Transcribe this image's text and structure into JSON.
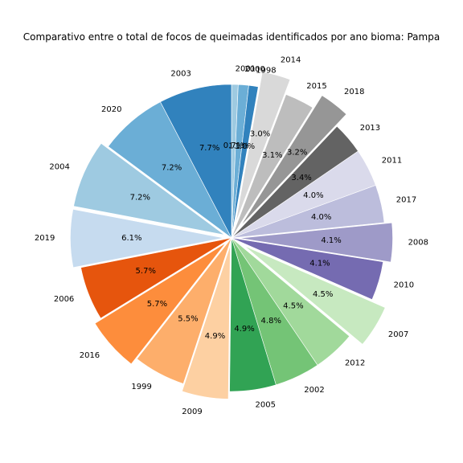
{
  "chart_data": {
    "type": "pie",
    "title": "Comparativo entre o total de focos de queimadas identificados por ano bioma: Pampa",
    "start_angle_deg": 90,
    "direction": "clockwise",
    "pct_format": "{:.1f}%",
    "slices": [
      {
        "label": "2001",
        "value": 0.7,
        "pct": "0.7%",
        "color": "#9ecae1",
        "explode": 0
      },
      {
        "label": "2000",
        "value": 1.1,
        "pct": "1.1%",
        "color": "#6baed6",
        "explode": 0
      },
      {
        "label": "1998",
        "value": 1.0,
        "pct": "1.0%",
        "color": "#3182bd",
        "explode": 0
      },
      {
        "label": "2014",
        "value": 3.0,
        "pct": "3.0%",
        "color": "#d9d9d9",
        "explode": 0.1
      },
      {
        "label": "2015",
        "value": 3.1,
        "pct": "3.1%",
        "color": "#bdbdbd",
        "explode": 0
      },
      {
        "label": "2018",
        "value": 3.2,
        "pct": "3.2%",
        "color": "#969696",
        "explode": 0.1
      },
      {
        "label": "2013",
        "value": 3.4,
        "pct": "3.4%",
        "color": "#636363",
        "explode": 0
      },
      {
        "label": "2011",
        "value": 4.0,
        "pct": "4.0%",
        "color": "#dadaeb",
        "explode": 0
      },
      {
        "label": "2017",
        "value": 4.0,
        "pct": "4.0%",
        "color": "#bcbddc",
        "explode": 0
      },
      {
        "label": "2008",
        "value": 4.1,
        "pct": "4.1%",
        "color": "#9e9ac8",
        "explode": 0.05
      },
      {
        "label": "2010",
        "value": 4.1,
        "pct": "4.1%",
        "color": "#756bb1",
        "explode": 0
      },
      {
        "label": "2007",
        "value": 4.5,
        "pct": "4.5%",
        "color": "#c7e9c0",
        "explode": 0.1
      },
      {
        "label": "2012",
        "value": 4.5,
        "pct": "4.5%",
        "color": "#a1d99b",
        "explode": 0
      },
      {
        "label": "2002",
        "value": 4.8,
        "pct": "4.8%",
        "color": "#74c476",
        "explode": 0
      },
      {
        "label": "2005",
        "value": 4.9,
        "pct": "4.9%",
        "color": "#31a354",
        "explode": 0
      },
      {
        "label": "2009",
        "value": 4.9,
        "pct": "4.9%",
        "color": "#fdd0a2",
        "explode": 0.05
      },
      {
        "label": "1999",
        "value": 5.5,
        "pct": "5.5%",
        "color": "#fdae6b",
        "explode": 0
      },
      {
        "label": "2016",
        "value": 5.7,
        "pct": "5.7%",
        "color": "#fd8d3c",
        "explode": 0.05
      },
      {
        "label": "2006",
        "value": 5.7,
        "pct": "5.7%",
        "color": "#e6550d",
        "explode": 0
      },
      {
        "label": "2019",
        "value": 6.1,
        "pct": "6.1%",
        "color": "#c6dbef",
        "explode": 0.05
      },
      {
        "label": "2004",
        "value": 7.2,
        "pct": "7.2%",
        "color": "#9ecae1",
        "explode": 0.05
      },
      {
        "label": "2020",
        "value": 7.2,
        "pct": "7.2%",
        "color": "#6baed6",
        "explode": 0
      },
      {
        "label": "2003",
        "value": 7.7,
        "pct": "7.7%",
        "color": "#3182bd",
        "explode": 0
      }
    ]
  }
}
